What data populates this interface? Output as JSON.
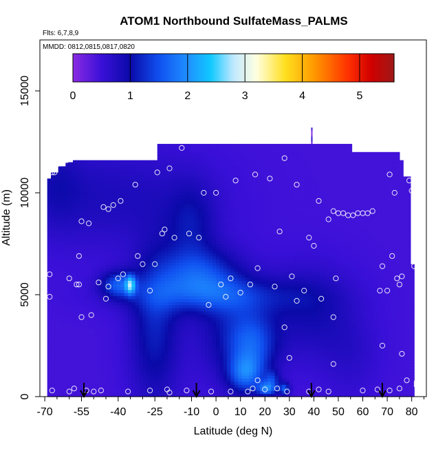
{
  "chart_data": {
    "type": "heatmap",
    "title": "ATOM1 Northbound SulfateMass_PALMS",
    "subtitle_flights": "Flts: 6,7,8,9",
    "subtitle_dates": "MMDD: 0812,0815,0817,0820",
    "xlabel": "Latitude (deg N)",
    "ylabel": "Altitude (m)",
    "xlim": [
      -72,
      86
    ],
    "ylim": [
      0,
      17500
    ],
    "x_ticks": [
      -70,
      -55,
      -40,
      -25,
      -10,
      0,
      10,
      20,
      30,
      40,
      50,
      60,
      70,
      80
    ],
    "x_tick_labels": [
      "-70",
      "-55",
      "-40",
      "-25",
      "-10",
      "0",
      "10",
      "20",
      "30",
      "40",
      "50",
      "60",
      "70",
      "80"
    ],
    "x_minor_ticks": [
      -65,
      -60,
      -50,
      -45,
      -35,
      -30,
      -20,
      -15,
      -5,
      5,
      15,
      25,
      35,
      45,
      55,
      65,
      75,
      85
    ],
    "y_ticks": [
      0,
      5000,
      10000,
      15000
    ],
    "y_tick_labels": [
      "0",
      "5000",
      "10000",
      "15000"
    ],
    "colorbar": {
      "range": [
        0,
        5.6
      ],
      "ticks": [
        0,
        1,
        2,
        3,
        4,
        5
      ],
      "tick_labels": [
        "0",
        "1",
        "2",
        "3",
        "4",
        "5"
      ],
      "stops": [
        {
          "v": 0.0,
          "c": "#8a2be2"
        },
        {
          "v": 0.5,
          "c": "#3a10d8"
        },
        {
          "v": 1.0,
          "c": "#0a0aa8"
        },
        {
          "v": 1.5,
          "c": "#1050f0"
        },
        {
          "v": 2.0,
          "c": "#2090ff"
        },
        {
          "v": 2.4,
          "c": "#10c8ff"
        },
        {
          "v": 2.8,
          "c": "#c0e8ff"
        },
        {
          "v": 3.2,
          "c": "#ffffe0"
        },
        {
          "v": 3.7,
          "c": "#ffe020"
        },
        {
          "v": 4.2,
          "c": "#ff9a00"
        },
        {
          "v": 4.8,
          "c": "#ff3000"
        },
        {
          "v": 5.2,
          "c": "#d00000"
        },
        {
          "v": 5.6,
          "c": "#a01818"
        }
      ]
    },
    "profile_markers_lat": [
      -54,
      -8,
      39,
      68
    ],
    "grid": false
  }
}
